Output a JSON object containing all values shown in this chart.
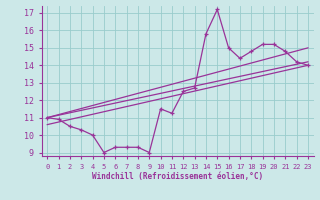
{
  "xlabel": "Windchill (Refroidissement éolien,°C)",
  "bg_color": "#cce8e8",
  "grid_color": "#99cccc",
  "line_color": "#993399",
  "xlim": [
    -0.5,
    23.5
  ],
  "ylim": [
    8.8,
    17.4
  ],
  "xticks": [
    0,
    1,
    2,
    3,
    4,
    5,
    6,
    7,
    8,
    9,
    10,
    11,
    12,
    13,
    14,
    15,
    16,
    17,
    18,
    19,
    20,
    21,
    22,
    23
  ],
  "yticks": [
    9,
    10,
    11,
    12,
    13,
    14,
    15,
    16,
    17
  ],
  "jagged_x": [
    0,
    1,
    2,
    3,
    4,
    5,
    6,
    7,
    8,
    9,
    10,
    11,
    12,
    13,
    14,
    15,
    16,
    17,
    18,
    19,
    20,
    21,
    22,
    23
  ],
  "jagged_y": [
    11.0,
    10.9,
    10.5,
    10.3,
    10.0,
    9.0,
    9.3,
    9.3,
    9.3,
    9.0,
    11.5,
    11.25,
    12.5,
    12.7,
    15.8,
    17.2,
    15.0,
    14.4,
    14.8,
    15.2,
    15.2,
    14.8,
    14.2,
    14.0
  ],
  "line1_x": [
    0,
    23
  ],
  "line1_y": [
    11.0,
    15.0
  ],
  "line2_x": [
    0,
    23
  ],
  "line2_y": [
    11.0,
    14.2
  ],
  "line3_x": [
    0,
    23
  ],
  "line3_y": [
    10.6,
    14.0
  ]
}
